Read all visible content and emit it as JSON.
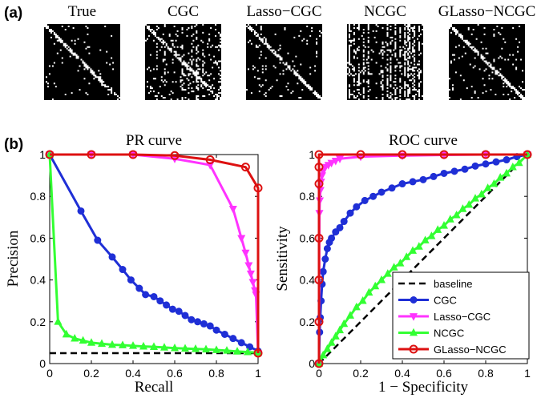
{
  "panel_a_label": "(a)",
  "panel_b_label": "(b)",
  "matrix_titles": [
    "True",
    "CGC",
    "Lasso−CGC",
    "NCGC",
    "GLasso−NCGC"
  ],
  "matrix_density": [
    0.05,
    0.22,
    0.08,
    0.35,
    0.09
  ],
  "colors": {
    "baseline": "#000000",
    "CGC": "#1f2fd6",
    "Lasso-CGC": "#ff33ff",
    "NCGC": "#33ff33",
    "GLasso-NCGC": "#dd1111"
  },
  "chart_data": [
    {
      "type": "line",
      "title": "PR curve",
      "xlabel": "Recall",
      "ylabel": "Precision",
      "xlim": [
        0,
        1
      ],
      "ylim": [
        0,
        1
      ],
      "xticks": [
        "0",
        "0.2",
        "0.4",
        "0.6",
        "0.8",
        "1"
      ],
      "yticks": [
        "0",
        "0.2",
        "0.4",
        "0.6",
        "0.8",
        "1"
      ],
      "series": [
        {
          "name": "baseline",
          "style": "dashed",
          "marker": "none",
          "x": [
            0,
            1
          ],
          "y": [
            0.05,
            0.05
          ]
        },
        {
          "name": "CGC",
          "marker": "circle",
          "x": [
            0,
            0.15,
            0.23,
            0.3,
            0.35,
            0.39,
            0.43,
            0.46,
            0.5,
            0.53,
            0.56,
            0.59,
            0.62,
            0.65,
            0.68,
            0.71,
            0.74,
            0.77,
            0.8,
            0.84,
            0.88,
            0.92,
            0.96,
            1.0
          ],
          "y": [
            1.0,
            0.73,
            0.59,
            0.51,
            0.45,
            0.4,
            0.36,
            0.33,
            0.32,
            0.3,
            0.28,
            0.26,
            0.25,
            0.23,
            0.21,
            0.2,
            0.19,
            0.18,
            0.16,
            0.14,
            0.12,
            0.1,
            0.08,
            0.06
          ]
        },
        {
          "name": "Lasso-CGC",
          "marker": "triangle-down",
          "x": [
            0,
            0.2,
            0.4,
            0.6,
            0.77,
            0.88,
            0.92,
            0.94,
            0.955,
            0.965,
            0.975,
            0.985,
            0.99,
            1.0
          ],
          "y": [
            1.0,
            1.0,
            1.0,
            0.98,
            0.95,
            0.74,
            0.6,
            0.53,
            0.47,
            0.43,
            0.39,
            0.35,
            0.33,
            0.05
          ]
        },
        {
          "name": "NCGC",
          "marker": "triangle-up",
          "x": [
            0,
            0.04,
            0.08,
            0.12,
            0.16,
            0.2,
            0.25,
            0.3,
            0.35,
            0.4,
            0.45,
            0.5,
            0.55,
            0.6,
            0.65,
            0.7,
            0.75,
            0.8,
            0.85,
            0.9,
            0.95,
            1.0
          ],
          "y": [
            1.0,
            0.2,
            0.14,
            0.12,
            0.11,
            0.1,
            0.095,
            0.09,
            0.088,
            0.085,
            0.082,
            0.08,
            0.077,
            0.074,
            0.072,
            0.07,
            0.068,
            0.065,
            0.062,
            0.058,
            0.055,
            0.052
          ]
        },
        {
          "name": "GLasso-NCGC",
          "marker": "circle-open",
          "x": [
            0,
            0.2,
            0.4,
            0.6,
            0.77,
            0.94,
            1.0,
            1.0
          ],
          "y": [
            1.0,
            1.0,
            1.0,
            0.995,
            0.975,
            0.94,
            0.84,
            0.05
          ]
        }
      ]
    },
    {
      "type": "line",
      "title": "ROC curve",
      "xlabel": "1 − Specificity",
      "ylabel": "Sensitivity",
      "xlim": [
        0,
        1
      ],
      "ylim": [
        0,
        1
      ],
      "xticks": [
        "0",
        "0.2",
        "0.4",
        "0.6",
        "0.8",
        "1"
      ],
      "yticks": [
        "0",
        "0.2",
        "0.4",
        "0.6",
        "0.8",
        "1"
      ],
      "legend": [
        "baseline",
        "CGC",
        "Lasso−CGC",
        "NCGC",
        "GLasso−NCGC"
      ],
      "legend_position": "bottom-right",
      "series": [
        {
          "name": "baseline",
          "style": "dashed",
          "marker": "none",
          "x": [
            0,
            1
          ],
          "y": [
            0,
            1
          ]
        },
        {
          "name": "CGC",
          "marker": "circle",
          "x": [
            0,
            0.003,
            0.006,
            0.01,
            0.015,
            0.02,
            0.03,
            0.04,
            0.05,
            0.06,
            0.08,
            0.1,
            0.12,
            0.15,
            0.18,
            0.22,
            0.26,
            0.3,
            0.35,
            0.4,
            0.45,
            0.5,
            0.55,
            0.6,
            0.65,
            0.7,
            0.75,
            0.8,
            0.85,
            0.9,
            0.95,
            1.0
          ],
          "y": [
            0,
            0.15,
            0.22,
            0.3,
            0.38,
            0.44,
            0.5,
            0.55,
            0.58,
            0.6,
            0.63,
            0.65,
            0.68,
            0.72,
            0.75,
            0.78,
            0.8,
            0.82,
            0.84,
            0.86,
            0.87,
            0.88,
            0.895,
            0.91,
            0.92,
            0.93,
            0.945,
            0.955,
            0.965,
            0.975,
            0.99,
            1.0
          ]
        },
        {
          "name": "Lasso-CGC",
          "marker": "triangle-down",
          "x": [
            0,
            0.002,
            0.004,
            0.007,
            0.01,
            0.015,
            0.02,
            0.03,
            0.045,
            0.06,
            0.08,
            0.1,
            0.2,
            0.4,
            0.6,
            0.8,
            1.0
          ],
          "y": [
            0,
            0.72,
            0.78,
            0.83,
            0.87,
            0.9,
            0.92,
            0.94,
            0.95,
            0.96,
            0.97,
            0.98,
            0.99,
            0.995,
            0.998,
            1.0,
            1.0
          ]
        },
        {
          "name": "NCGC",
          "marker": "triangle-up",
          "x": [
            0,
            0.02,
            0.04,
            0.06,
            0.08,
            0.1,
            0.12,
            0.15,
            0.18,
            0.21,
            0.24,
            0.27,
            0.3,
            0.33,
            0.36,
            0.39,
            0.42,
            0.45,
            0.48,
            0.51,
            0.54,
            0.57,
            0.6,
            0.63,
            0.66,
            0.69,
            0.72,
            0.75,
            0.78,
            0.81,
            0.84,
            0.87,
            0.9,
            0.93,
            0.96,
            1.0
          ],
          "y": [
            0,
            0.04,
            0.07,
            0.1,
            0.13,
            0.16,
            0.19,
            0.23,
            0.27,
            0.3,
            0.34,
            0.37,
            0.4,
            0.43,
            0.46,
            0.48,
            0.51,
            0.54,
            0.56,
            0.59,
            0.61,
            0.64,
            0.66,
            0.69,
            0.71,
            0.74,
            0.76,
            0.79,
            0.81,
            0.84,
            0.86,
            0.89,
            0.91,
            0.94,
            0.96,
            1.0
          ]
        },
        {
          "name": "GLasso-NCGC",
          "marker": "circle-open",
          "x": [
            0,
            0,
            0,
            0,
            0,
            0,
            0,
            0.2,
            0.4,
            0.6,
            0.8,
            1.0
          ],
          "y": [
            0,
            0.2,
            0.4,
            0.6,
            0.86,
            0.94,
            1.0,
            1.0,
            1.0,
            1.0,
            1.0,
            1.0
          ]
        }
      ]
    }
  ]
}
